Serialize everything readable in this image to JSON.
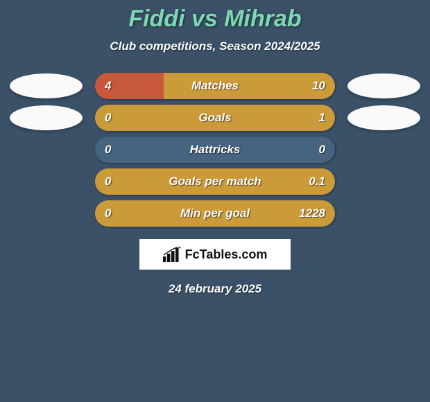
{
  "title": "Fiddi vs Mihrab",
  "title_color": "#7dd8b3",
  "title_fontsize": 34,
  "subtitle": "Club competitions, Season 2024/2025",
  "subtitle_color": "#ffffff",
  "subtitle_fontsize": 17,
  "background_color": "#3b5168",
  "left_color": "#c7583a",
  "right_color": "#cb9b3a",
  "neutral_color": "#46637f",
  "rows": [
    {
      "label": "Matches",
      "left": "4",
      "right": "10",
      "left_pct": 28.57,
      "right_pct": 71.43,
      "show_avatars": true
    },
    {
      "label": "Goals",
      "left": "0",
      "right": "1",
      "left_pct": 0,
      "right_pct": 100,
      "show_avatars": true
    },
    {
      "label": "Hattricks",
      "left": "0",
      "right": "0",
      "left_pct": 0,
      "right_pct": 0,
      "show_avatars": false
    },
    {
      "label": "Goals per match",
      "left": "0",
      "right": "0.1",
      "left_pct": 0,
      "right_pct": 100,
      "show_avatars": false
    },
    {
      "label": "Min per goal",
      "left": "0",
      "right": "1228",
      "left_pct": 0,
      "right_pct": 100,
      "show_avatars": false
    }
  ],
  "logo_text_a": "Fc",
  "logo_text_b": "Tables.com",
  "date": "24 february 2025"
}
